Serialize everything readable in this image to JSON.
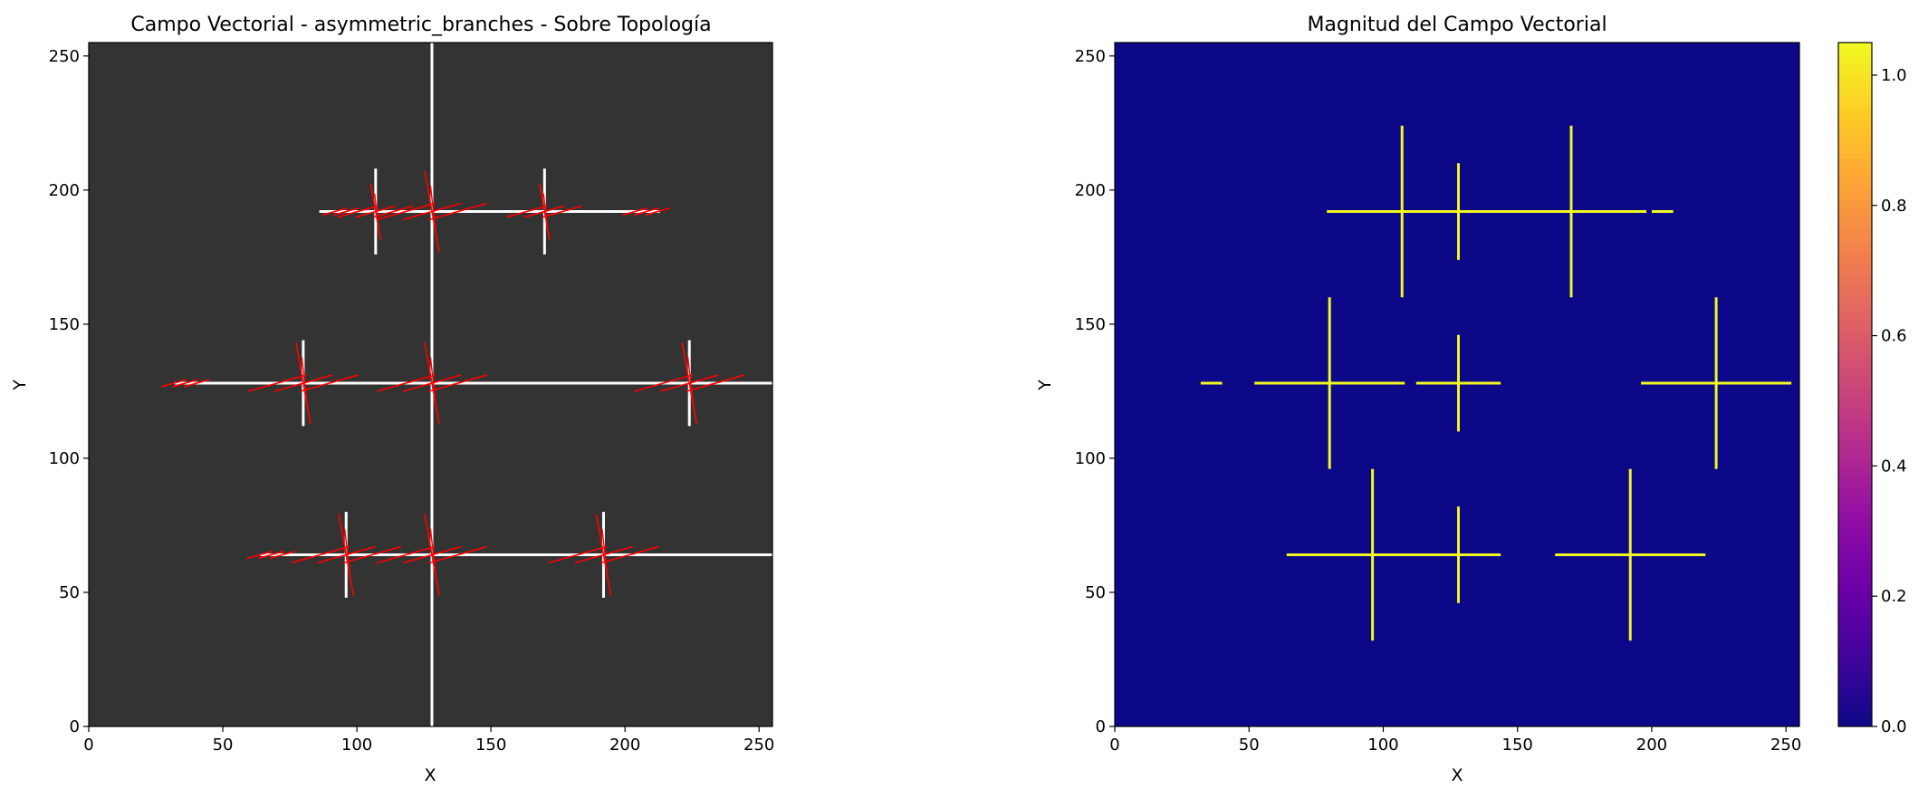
{
  "chart_data": [
    {
      "type": "quiver",
      "title": "Campo Vectorial - asymmetric_branches - Sobre Topología",
      "xlabel": "X",
      "ylabel": "Y",
      "xlim": [
        0,
        255
      ],
      "ylim": [
        0,
        255
      ],
      "xticks": [
        0,
        50,
        100,
        150,
        200,
        250
      ],
      "yticks": [
        0,
        50,
        100,
        150,
        200,
        250
      ],
      "background_color": "#333333",
      "topology_color": "#ffffff",
      "vector_color": "#ff0000",
      "topology": {
        "horizontal": [
          {
            "y": 64,
            "x": [
              64,
              255
            ]
          },
          {
            "y": 128,
            "x": [
              32,
              255
            ]
          },
          {
            "y": 192,
            "x": [
              86,
              213
            ]
          }
        ],
        "vertical": [
          {
            "x": 128,
            "y": [
              0,
              255
            ]
          },
          {
            "x": 96,
            "y": [
              48,
              80
            ]
          },
          {
            "x": 192,
            "y": [
              48,
              80
            ]
          },
          {
            "x": 80,
            "y": [
              112,
              144
            ]
          },
          {
            "x": 224,
            "y": [
              112,
              144
            ]
          },
          {
            "x": 107,
            "y": [
              176,
              208
            ]
          },
          {
            "x": 170,
            "y": [
              176,
              208
            ]
          }
        ]
      },
      "vector_clusters": [
        {
          "x": 68,
          "y": 64,
          "size": "small"
        },
        {
          "x": 96,
          "y": 64,
          "size": "large"
        },
        {
          "x": 128,
          "y": 64,
          "size": "large"
        },
        {
          "x": 192,
          "y": 64,
          "size": "large"
        },
        {
          "x": 36,
          "y": 128,
          "size": "small"
        },
        {
          "x": 80,
          "y": 128,
          "size": "large"
        },
        {
          "x": 128,
          "y": 128,
          "size": "large"
        },
        {
          "x": 224,
          "y": 128,
          "size": "large"
        },
        {
          "x": 96,
          "y": 192,
          "size": "small"
        },
        {
          "x": 107,
          "y": 192,
          "size": "medium"
        },
        {
          "x": 128,
          "y": 192,
          "size": "large"
        },
        {
          "x": 170,
          "y": 192,
          "size": "medium"
        },
        {
          "x": 208,
          "y": 192,
          "size": "small"
        }
      ]
    },
    {
      "type": "heatmap",
      "title": "Magnitud del Campo Vectorial",
      "xlabel": "X",
      "ylabel": "Y",
      "xlim": [
        0,
        255
      ],
      "ylim": [
        0,
        255
      ],
      "xticks": [
        0,
        50,
        100,
        150,
        200,
        250
      ],
      "yticks": [
        0,
        50,
        100,
        150,
        200,
        250
      ],
      "colormap": "plasma",
      "background_value": 0.0,
      "background_color": "#0d0887",
      "feature_color": "#f0f921",
      "features": [
        {
          "x": 68,
          "y": 64,
          "shape": "dash",
          "arm": 4
        },
        {
          "x": 96,
          "y": 64,
          "shape": "cross",
          "arm": 16
        },
        {
          "x": 128,
          "y": 64,
          "shape": "cross",
          "arm": 9
        },
        {
          "x": 192,
          "y": 64,
          "shape": "cross",
          "arm": 16
        },
        {
          "x": 36,
          "y": 128,
          "shape": "dash",
          "arm": 4
        },
        {
          "x": 80,
          "y": 128,
          "shape": "cross",
          "arm": 16
        },
        {
          "x": 128,
          "y": 128,
          "shape": "cross",
          "arm": 9
        },
        {
          "x": 224,
          "y": 128,
          "shape": "cross",
          "arm": 16
        },
        {
          "x": 90,
          "y": 192,
          "shape": "dash",
          "arm": 4
        },
        {
          "x": 107,
          "y": 192,
          "shape": "cross",
          "arm": 16
        },
        {
          "x": 128,
          "y": 192,
          "shape": "cross",
          "arm": 9
        },
        {
          "x": 170,
          "y": 192,
          "shape": "cross",
          "arm": 16
        },
        {
          "x": 204,
          "y": 192,
          "shape": "dash",
          "arm": 4
        }
      ],
      "colorbar": {
        "min": 0.0,
        "max": 1.05,
        "ticks": [
          "0.0",
          "0.2",
          "0.4",
          "0.6",
          "0.8",
          "1.0"
        ],
        "tick_values": [
          0.0,
          0.2,
          0.4,
          0.6,
          0.8,
          1.0
        ]
      }
    }
  ]
}
